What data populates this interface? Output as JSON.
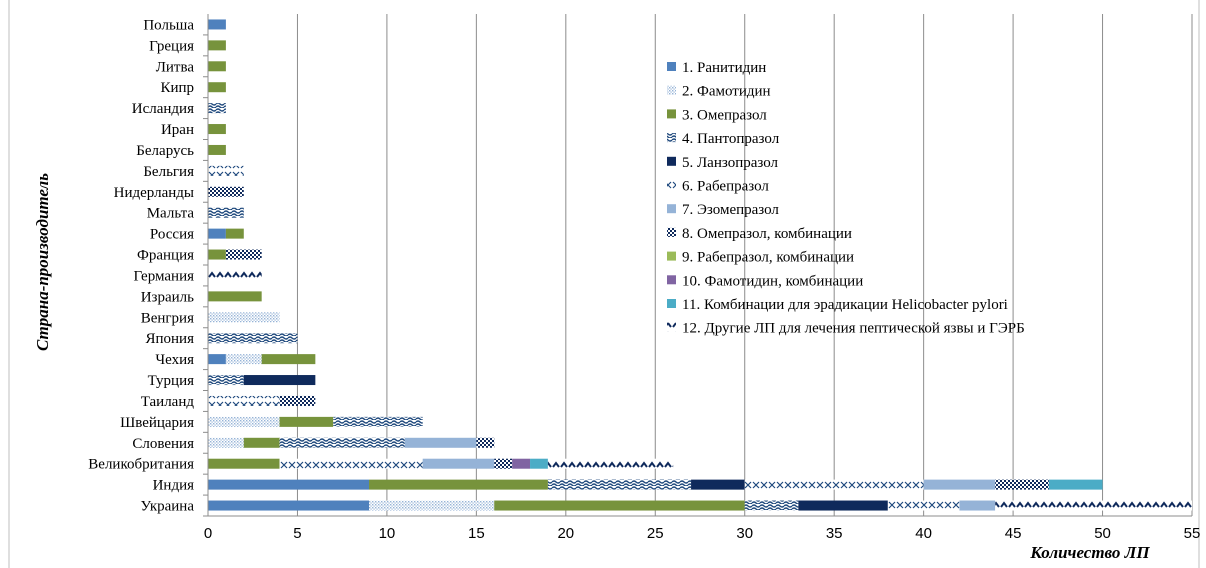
{
  "chart_data": {
    "type": "bar",
    "orientation": "horizontal",
    "stacked": true,
    "xlabel": "Количество ЛП",
    "ylabel": "Страна-производитель",
    "xlim": [
      0,
      55
    ],
    "xticks": [
      0,
      5,
      10,
      15,
      20,
      25,
      30,
      35,
      40,
      45,
      50,
      55
    ],
    "grid": "vertical",
    "legend_position": "right",
    "categories": [
      "Польша",
      "Греция",
      "Литва",
      "Кипр",
      "Исландия",
      "Иран",
      "Беларусь",
      "Бельгия",
      "Нидерланды",
      "Мальта",
      "Россия",
      "Франция",
      "Германия",
      "Израиль",
      "Венгрия",
      "Япония",
      "Чехия",
      "Турция",
      "Таиланд",
      "Швейцария",
      "Словения",
      "Великобритания",
      "Индия",
      "Украина"
    ],
    "series": [
      {
        "name": "1. Ранитидин",
        "color": "#4f81bd",
        "pattern": "solid",
        "values": [
          1,
          0,
          0,
          0,
          0,
          0,
          0,
          0,
          0,
          0,
          1,
          0,
          0,
          0,
          0,
          0,
          1,
          0,
          0,
          0,
          0,
          0,
          9,
          9
        ]
      },
      {
        "name": "2. Фамотидин",
        "color": "#95b3d7",
        "pattern": "dots",
        "values": [
          0,
          0,
          0,
          0,
          0,
          0,
          0,
          0,
          0,
          0,
          0,
          0,
          0,
          0,
          4,
          0,
          2,
          0,
          0,
          4,
          2,
          0,
          0,
          7
        ]
      },
      {
        "name": "3. Омепразол",
        "color": "#77933c",
        "pattern": "solid",
        "values": [
          0,
          1,
          1,
          1,
          0,
          1,
          1,
          0,
          0,
          0,
          1,
          1,
          0,
          3,
          0,
          0,
          3,
          0,
          0,
          3,
          2,
          4,
          10,
          14
        ]
      },
      {
        "name": "4. Пантопразол",
        "color": "#1f497d",
        "pattern": "waves",
        "values": [
          0,
          0,
          0,
          0,
          1,
          0,
          0,
          0,
          0,
          2,
          0,
          0,
          0,
          0,
          0,
          5,
          0,
          2,
          0,
          5,
          7,
          0,
          8,
          3
        ]
      },
      {
        "name": "5. Ланзопразол",
        "color": "#0f2a5c",
        "pattern": "solid",
        "values": [
          0,
          0,
          0,
          0,
          0,
          0,
          0,
          0,
          0,
          0,
          0,
          0,
          0,
          0,
          0,
          0,
          0,
          4,
          0,
          0,
          0,
          0,
          3,
          5
        ]
      },
      {
        "name": "6. Рабепразол",
        "color": "#1f497d",
        "pattern": "cross",
        "values": [
          0,
          0,
          0,
          0,
          0,
          0,
          0,
          2,
          0,
          0,
          0,
          0,
          0,
          0,
          0,
          0,
          0,
          0,
          4,
          0,
          0,
          8,
          10,
          4
        ]
      },
      {
        "name": "7. Эзомепразол",
        "color": "#95b3d7",
        "pattern": "solid",
        "values": [
          0,
          0,
          0,
          0,
          0,
          0,
          0,
          0,
          0,
          0,
          0,
          0,
          0,
          0,
          0,
          0,
          0,
          0,
          0,
          0,
          4,
          4,
          4,
          2
        ]
      },
      {
        "name": "8. Омепразол, комбинации",
        "color": "#0f2a5c",
        "pattern": "checker",
        "values": [
          0,
          0,
          0,
          0,
          0,
          0,
          0,
          0,
          2,
          0,
          0,
          2,
          0,
          0,
          0,
          0,
          0,
          0,
          2,
          0,
          1,
          1,
          3,
          0
        ]
      },
      {
        "name": "9. Рабепразол, комбинации",
        "color": "#9bbb59",
        "pattern": "solid",
        "values": [
          0,
          0,
          0,
          0,
          0,
          0,
          0,
          0,
          0,
          0,
          0,
          0,
          0,
          0,
          0,
          0,
          0,
          0,
          0,
          0,
          0,
          0,
          0,
          0
        ]
      },
      {
        "name": "10. Фамотидин, комбинации",
        "color": "#8064a2",
        "pattern": "solid",
        "values": [
          0,
          0,
          0,
          0,
          0,
          0,
          0,
          0,
          0,
          0,
          0,
          0,
          0,
          0,
          0,
          0,
          0,
          0,
          0,
          0,
          0,
          1,
          0,
          0
        ]
      },
      {
        "name": "11. Комбинации  для эрадикации  Helicobacter pylori",
        "color": "#4bacc6",
        "pattern": "solid",
        "values": [
          0,
          0,
          0,
          0,
          0,
          0,
          0,
          0,
          0,
          0,
          0,
          0,
          0,
          0,
          0,
          0,
          0,
          0,
          0,
          0,
          0,
          1,
          3,
          0
        ]
      },
      {
        "name": "12. Другие ЛП для лечения пептической язвы и ГЭРБ",
        "color": "#0f2a5c",
        "pattern": "zigzag",
        "values": [
          0,
          0,
          0,
          0,
          0,
          0,
          0,
          0,
          0,
          0,
          0,
          0,
          3,
          0,
          0,
          0,
          0,
          0,
          0,
          0,
          0,
          7,
          0,
          11
        ]
      }
    ]
  }
}
